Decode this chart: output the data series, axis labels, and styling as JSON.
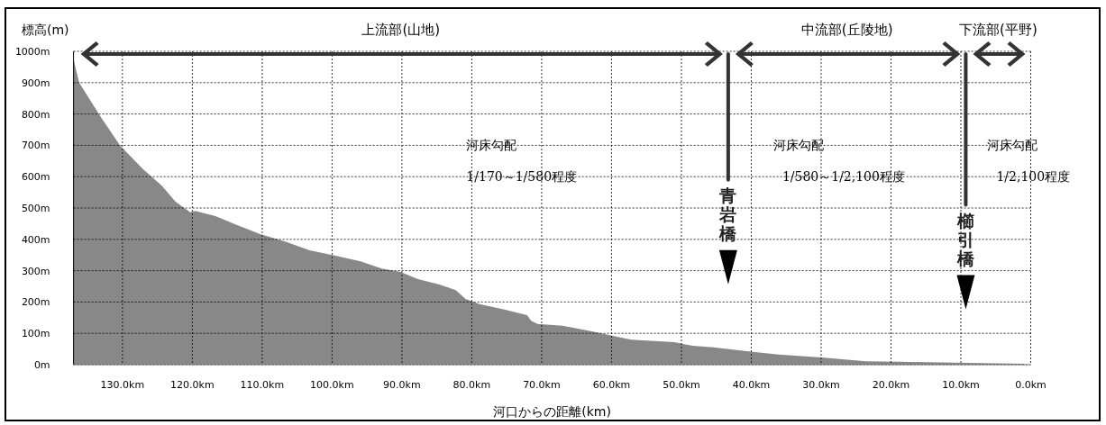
{
  "chart_data": {
    "type": "area",
    "xlabel": "河口からの距離(km)",
    "ylabel": "標高(m)",
    "xlim": [
      137,
      0
    ],
    "ylim": [
      0,
      1000
    ],
    "xticks": [
      {
        "value": 130,
        "label": "130.0km"
      },
      {
        "value": 120,
        "label": "120.0km"
      },
      {
        "value": 110,
        "label": "110.0km"
      },
      {
        "value": 100,
        "label": "100.0km"
      },
      {
        "value": 90,
        "label": "90.0km"
      },
      {
        "value": 80,
        "label": "80.0km"
      },
      {
        "value": 70,
        "label": "70.0km"
      },
      {
        "value": 60,
        "label": "60.0km"
      },
      {
        "value": 50,
        "label": "50.0km"
      },
      {
        "value": 40,
        "label": "40.0km"
      },
      {
        "value": 30,
        "label": "30.0km"
      },
      {
        "value": 20,
        "label": "20.0km"
      },
      {
        "value": 10,
        "label": "10.0km"
      },
      {
        "value": 0,
        "label": "0.0km"
      }
    ],
    "yticks": [
      {
        "value": 0,
        "label": "0m"
      },
      {
        "value": 100,
        "label": "100m"
      },
      {
        "value": 200,
        "label": "200m"
      },
      {
        "value": 300,
        "label": "300m"
      },
      {
        "value": 400,
        "label": "400m"
      },
      {
        "value": 500,
        "label": "500m"
      },
      {
        "value": 600,
        "label": "600m"
      },
      {
        "value": 700,
        "label": "700m"
      },
      {
        "value": 800,
        "label": "800m"
      },
      {
        "value": 900,
        "label": "900m"
      },
      {
        "value": 1000,
        "label": "1000m"
      }
    ],
    "grid": true,
    "series": [
      {
        "color": "#888888",
        "x": [
          137,
          136.2,
          133.1,
          130.3,
          127.0,
          124.4,
          122.4,
          120.3,
          119.6,
          116.7,
          113.5,
          110.3,
          106.8,
          103.2,
          99.5,
          95.9,
          92.9,
          90.2,
          87.7,
          84.6,
          82.3,
          80.9,
          78.9,
          75.2,
          72.1,
          71.5,
          70.6,
          67.0,
          62.8,
          59.8,
          57.2,
          51.0,
          48.4,
          45.4,
          40.7,
          36.1,
          29.9,
          23.6,
          18.5,
          9.2,
          0.9
        ],
        "values": [
          974,
          900,
          790,
          698,
          623,
          572,
          520,
          486,
          491,
          474,
          445,
          417,
          394,
          365,
          348,
          330,
          307,
          296,
          273,
          256,
          238,
          210,
          193,
          175,
          158,
          140,
          130,
          124,
          106,
          92,
          80,
          72,
          60,
          55,
          43,
          32,
          23,
          11,
          9,
          6,
          3
        ]
      }
    ],
    "ref_lines": [
      {
        "axis": "x",
        "value": 43.3,
        "label": "青岩橋",
        "color": "#333333"
      },
      {
        "axis": "x",
        "value": 9.3,
        "label": "櫛引橋",
        "color": "#333333"
      }
    ],
    "annotations": [
      "上流部(山地)",
      "中流部(丘陵地)",
      "下流部(平野)",
      "河床勾配",
      "1/170～1/580程度",
      "河床勾配",
      "1/580～1/2,100程度",
      "河床勾配",
      "1/2,100程度"
    ]
  }
}
